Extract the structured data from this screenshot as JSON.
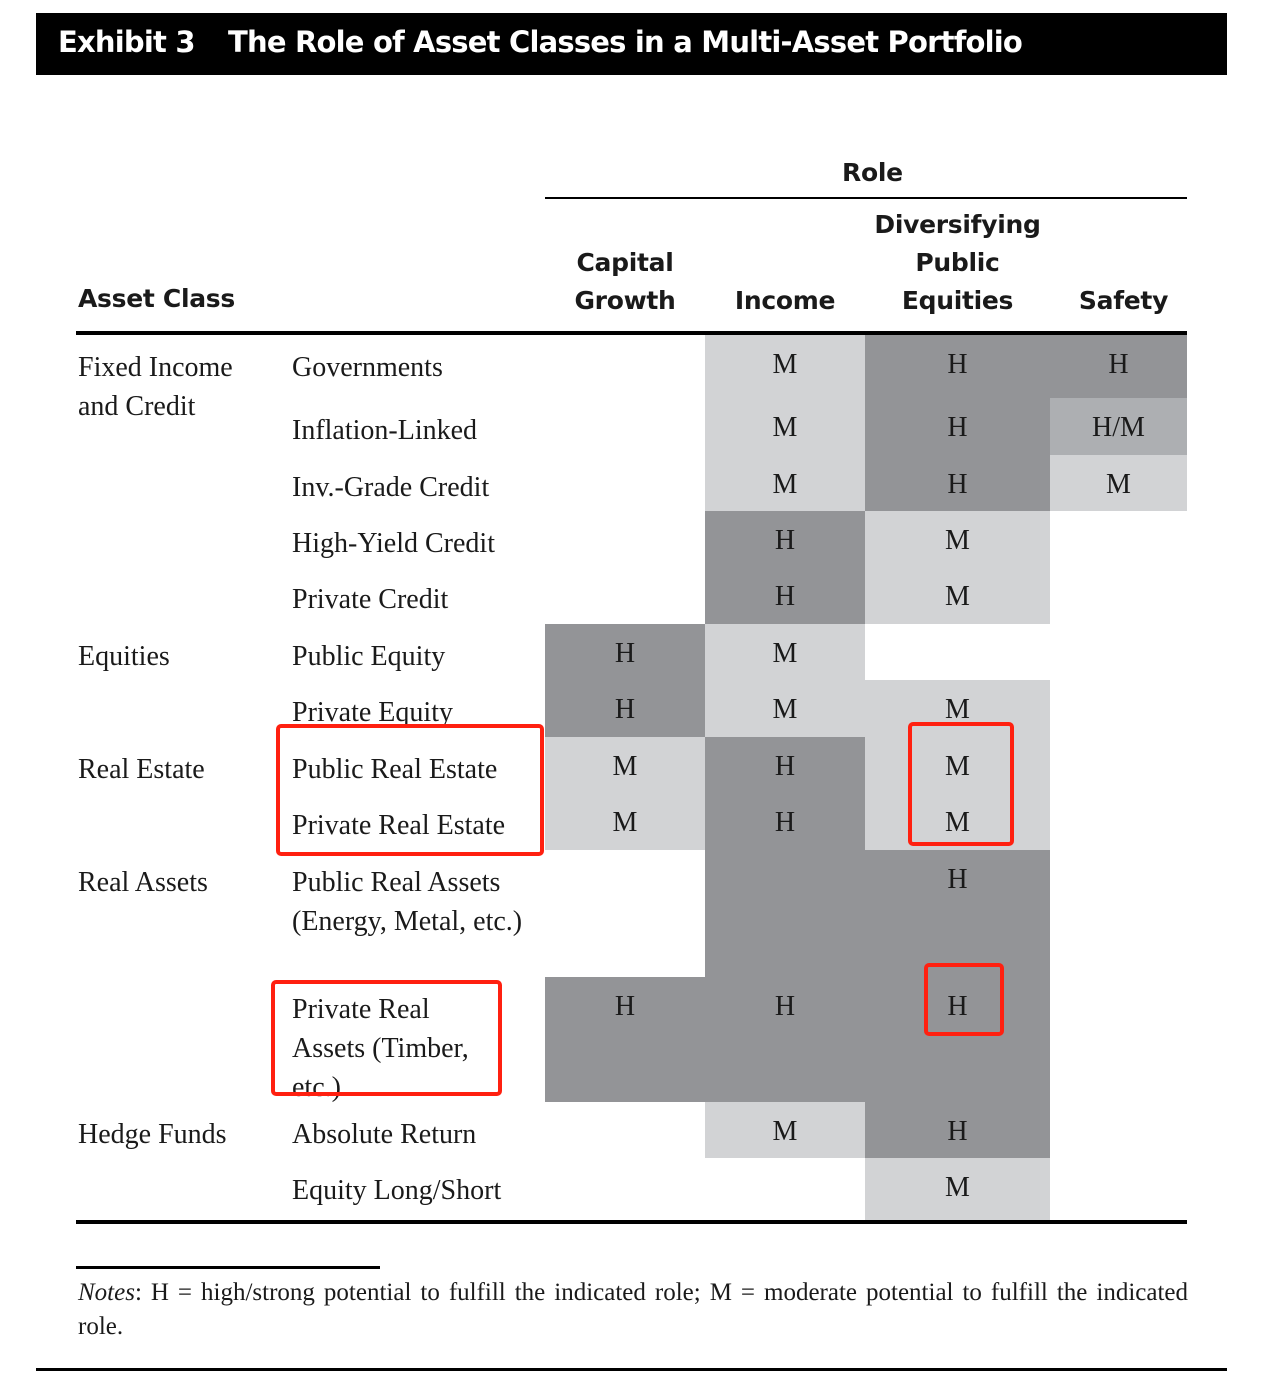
{
  "header": {
    "exhibit": "Exhibit 3",
    "title": "The Role of Asset Classes in a Multi-Asset Portfolio"
  },
  "table": {
    "role_label": "Role",
    "asset_class_label": "Asset Class",
    "columns": [
      "Capital Growth",
      "Income",
      "Diversifying Public Equities",
      "Safety"
    ],
    "colors": {
      "dark": "#939497",
      "light": "#d2d3d5",
      "mid": "#adafb2",
      "highlight": "#ff2010"
    },
    "groups": [
      "Fixed Income and Credit",
      "Equities",
      "Real Estate",
      "Real Assets",
      "Hedge Funds"
    ],
    "rows": [
      {
        "group": 0,
        "name": "Governments",
        "cells": [
          null,
          {
            "v": "M",
            "s": "light"
          },
          {
            "v": "H",
            "s": "dark"
          },
          {
            "v": "H",
            "s": "dark"
          }
        ]
      },
      {
        "name": "Inflation-Linked",
        "cells": [
          null,
          {
            "v": "M",
            "s": "light"
          },
          {
            "v": "H",
            "s": "dark"
          },
          {
            "v": "H/M",
            "s": "mid"
          }
        ]
      },
      {
        "name": "Inv.-Grade Credit",
        "cells": [
          null,
          {
            "v": "M",
            "s": "light"
          },
          {
            "v": "H",
            "s": "dark"
          },
          {
            "v": "M",
            "s": "light"
          }
        ]
      },
      {
        "name": "High-Yield Credit",
        "cells": [
          null,
          {
            "v": "H",
            "s": "dark"
          },
          {
            "v": "M",
            "s": "light"
          },
          null
        ]
      },
      {
        "name": "Private Credit",
        "cells": [
          null,
          {
            "v": "H",
            "s": "dark"
          },
          {
            "v": "M",
            "s": "light"
          },
          null
        ]
      },
      {
        "group": 1,
        "name": "Public Equity",
        "cells": [
          {
            "v": "H",
            "s": "dark"
          },
          {
            "v": "M",
            "s": "light"
          },
          null,
          null
        ]
      },
      {
        "name": "Private Equity",
        "cells": [
          {
            "v": "H",
            "s": "dark"
          },
          {
            "v": "M",
            "s": "light"
          },
          {
            "v": "M",
            "s": "light"
          },
          null
        ]
      },
      {
        "group": 2,
        "name": "Public Real Estate",
        "cells": [
          {
            "v": "M",
            "s": "light"
          },
          {
            "v": "H",
            "s": "dark"
          },
          {
            "v": "M",
            "s": "light"
          },
          null
        ]
      },
      {
        "name": "Private Real Estate",
        "cells": [
          {
            "v": "M",
            "s": "light"
          },
          {
            "v": "H",
            "s": "dark"
          },
          {
            "v": "M",
            "s": "light"
          },
          null
        ]
      },
      {
        "group": 3,
        "name": "Public Real Assets (Energy, Metal, etc.)",
        "cells": [
          null,
          {
            "v": "",
            "s": "dark"
          },
          {
            "v": "H",
            "s": "dark"
          },
          null
        ]
      },
      {
        "name": "Private Real Assets (Timber, etc.)",
        "cells": [
          {
            "v": "H",
            "s": "dark"
          },
          {
            "v": "H",
            "s": "dark"
          },
          {
            "v": "H",
            "s": "dark"
          },
          null
        ]
      },
      {
        "group": 4,
        "name": "Absolute Return",
        "cells": [
          null,
          {
            "v": "M",
            "s": "light"
          },
          {
            "v": "H",
            "s": "dark"
          },
          null
        ]
      },
      {
        "name": "Equity Long/Short",
        "cells": [
          null,
          null,
          {
            "v": "M",
            "s": "light"
          },
          null
        ]
      }
    ]
  },
  "notes": {
    "label": "Notes",
    "text": ": H = high/strong potential to fulfill the indicated role; M = moderate potential to fulfill the indicated role."
  }
}
